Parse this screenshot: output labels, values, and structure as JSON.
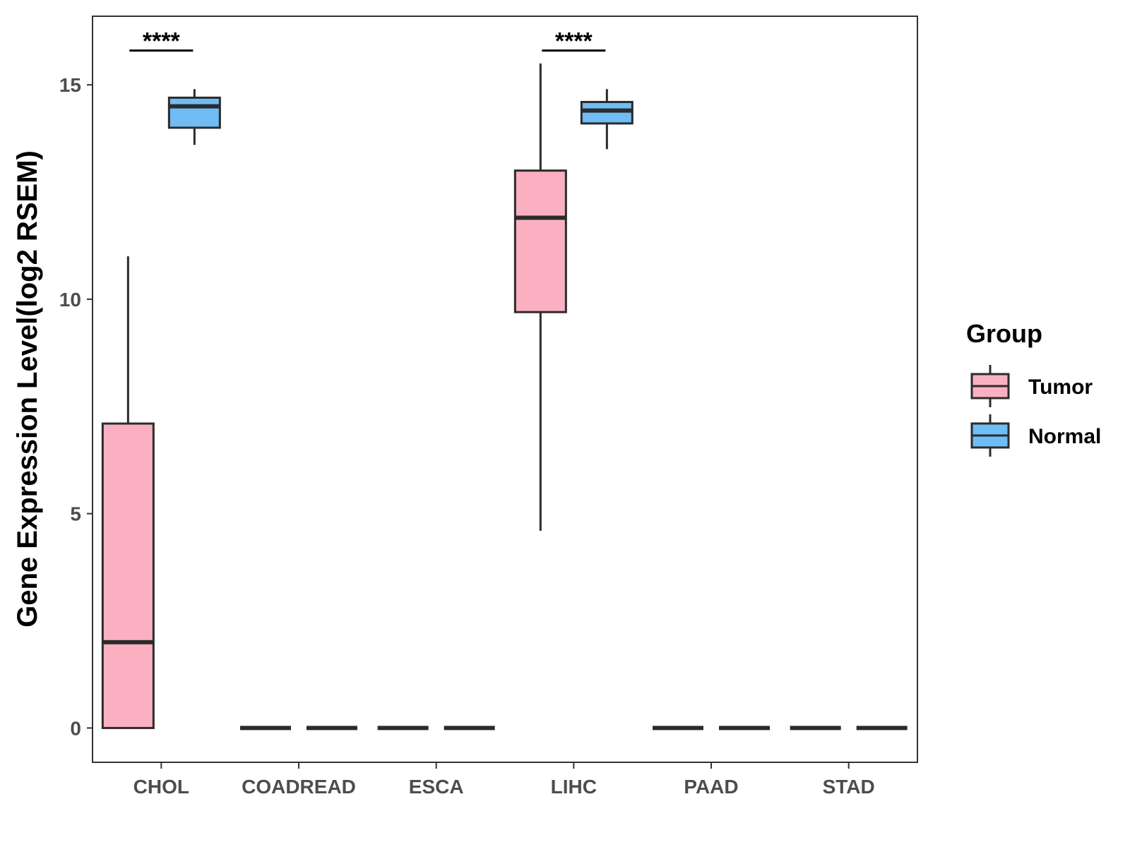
{
  "chart_data": {
    "type": "box",
    "title": "",
    "xlabel": "",
    "ylabel": "Gene Expression Level(log2 RSEM)",
    "ylim": [
      -0.8,
      16.6
    ],
    "yticks": [
      0,
      5,
      10,
      15
    ],
    "grid": false,
    "categories": [
      "CHOL",
      "COADREAD",
      "ESCA",
      "LIHC",
      "PAAD",
      "STAD"
    ],
    "legend": {
      "title": "Group",
      "position": "right",
      "entries": [
        {
          "name": "Tumor",
          "color": "#fbb0c2"
        },
        {
          "name": "Normal",
          "color": "#6fbdf4"
        }
      ]
    },
    "series": [
      {
        "name": "Tumor",
        "color": "#fbb0c2",
        "boxes": [
          {
            "category": "CHOL",
            "min": 0,
            "q1": 0,
            "median": 2.0,
            "q3": 7.1,
            "max": 11.0
          },
          {
            "category": "COADREAD",
            "min": 0,
            "q1": 0,
            "median": 0,
            "q3": 0,
            "max": 0
          },
          {
            "category": "ESCA",
            "min": 0,
            "q1": 0,
            "median": 0,
            "q3": 0,
            "max": 0
          },
          {
            "category": "LIHC",
            "min": 4.6,
            "q1": 9.7,
            "median": 11.9,
            "q3": 13.0,
            "max": 15.5
          },
          {
            "category": "PAAD",
            "min": 0,
            "q1": 0,
            "median": 0,
            "q3": 0,
            "max": 0
          },
          {
            "category": "STAD",
            "min": 0,
            "q1": 0,
            "median": 0,
            "q3": 0,
            "max": 0
          }
        ]
      },
      {
        "name": "Normal",
        "color": "#6fbdf4",
        "boxes": [
          {
            "category": "CHOL",
            "min": 13.6,
            "q1": 14.0,
            "median": 14.5,
            "q3": 14.7,
            "max": 14.9
          },
          {
            "category": "COADREAD",
            "min": 0,
            "q1": 0,
            "median": 0,
            "q3": 0,
            "max": 0
          },
          {
            "category": "ESCA",
            "min": 0,
            "q1": 0,
            "median": 0,
            "q3": 0,
            "max": 0
          },
          {
            "category": "LIHC",
            "min": 13.5,
            "q1": 14.1,
            "median": 14.4,
            "q3": 14.6,
            "max": 14.9
          },
          {
            "category": "PAAD",
            "min": 0,
            "q1": 0,
            "median": 0,
            "q3": 0,
            "max": 0
          },
          {
            "category": "STAD",
            "min": 0,
            "q1": 0,
            "median": 0,
            "q3": 0,
            "max": 0
          }
        ]
      }
    ],
    "significance": [
      {
        "category": "CHOL",
        "label": "****",
        "y": 15.8
      },
      {
        "category": "LIHC",
        "label": "****",
        "y": 15.8
      }
    ]
  }
}
